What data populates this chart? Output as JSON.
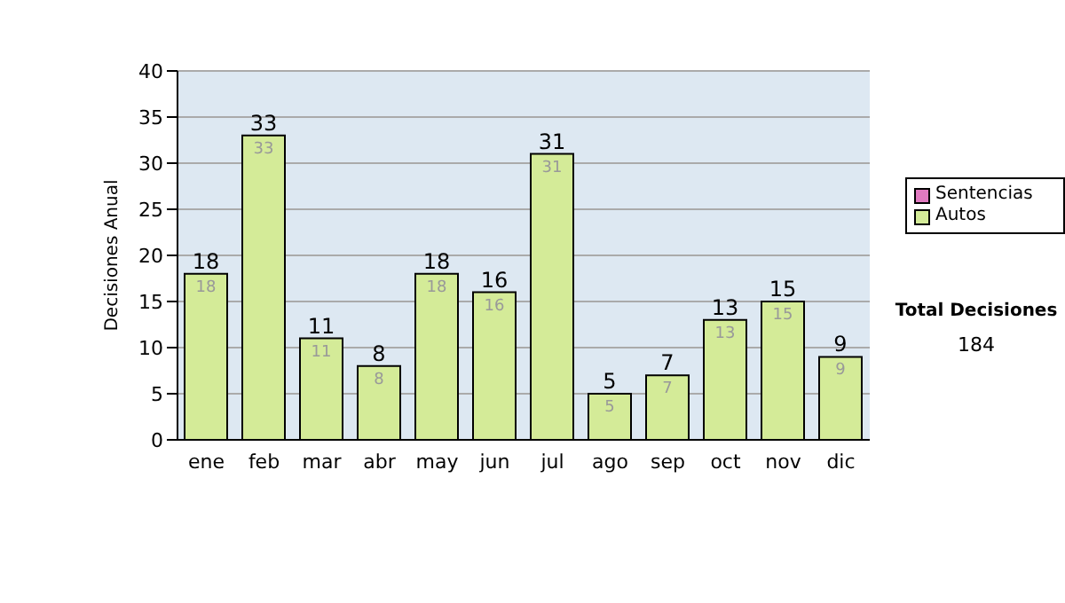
{
  "chart_data": {
    "type": "bar",
    "stacked": true,
    "ylabel": "Decisiones Anual",
    "categories": [
      "ene",
      "feb",
      "mar",
      "abr",
      "may",
      "jun",
      "jul",
      "ago",
      "sep",
      "oct",
      "nov",
      "dic"
    ],
    "series": [
      {
        "name": "Sentencias",
        "color": "#e07ac0",
        "values": [
          0,
          0,
          0,
          0,
          0,
          0,
          0,
          0,
          0,
          0,
          0,
          0
        ]
      },
      {
        "name": "Autos",
        "color": "#d4eb98",
        "values": [
          18,
          33,
          11,
          8,
          18,
          16,
          31,
          5,
          7,
          13,
          15,
          9
        ],
        "value_labels": [
          "18",
          "33",
          "11",
          "8",
          "18",
          "16",
          "31",
          "5",
          "7",
          "13",
          "15",
          "9"
        ]
      }
    ],
    "totals": [
      "18",
      "33",
      "11",
      "8",
      "18",
      "16",
      "31",
      "5",
      "7",
      "13",
      "15",
      "9"
    ],
    "ylim": [
      0,
      40
    ],
    "yticks": [
      0,
      5,
      10,
      15,
      20,
      25,
      30,
      35,
      40
    ],
    "grid": "y",
    "legend": "right",
    "annotations": [
      "Total Decisiones",
      "184"
    ]
  }
}
